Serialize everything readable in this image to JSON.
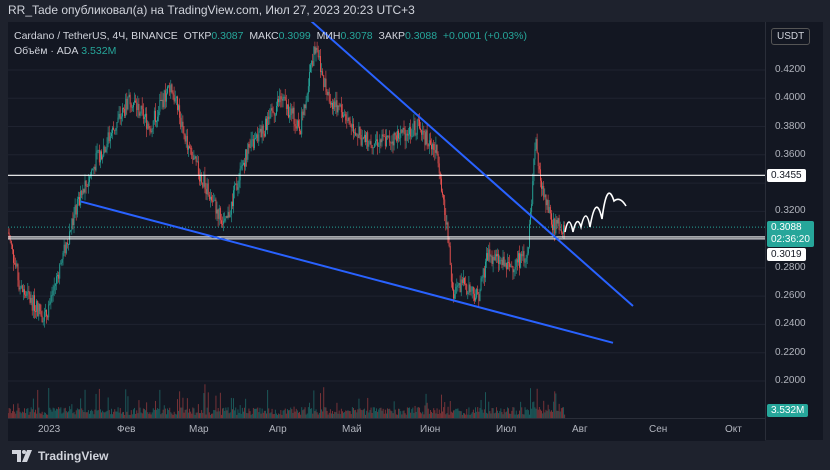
{
  "header": {
    "published": "RR_Tade опубликовал(а) на TradingView.com, Июл 27, 2023 20:23 UTC+3"
  },
  "legend": {
    "symbol": "Cardano / TetherUS, 4Ч, BINANCE",
    "open_label": "ОТКР",
    "open": "0.3087",
    "high_label": "МАКС",
    "high": "0.3099",
    "low_label": "МИН",
    "low": "0.3078",
    "close_label": "ЗАКР",
    "close": "0.3088",
    "change": "+0.0001 (+0.03%)",
    "volume_label": "Объём · ADA",
    "volume": "3.532M"
  },
  "currency_button": "USDT",
  "price_ticks": [
    "0.4200",
    "0.4000",
    "0.3800",
    "0.3600",
    "0.3200",
    "0.2800",
    "0.2600",
    "0.2400",
    "0.2200",
    "0.2000"
  ],
  "price_labels": {
    "level_high": "0.3455",
    "current": "0.3088",
    "countdown": "02:36:20",
    "level_low": "0.3019",
    "volume": "3.532M"
  },
  "time_ticks": [
    "2023",
    "Фев",
    "Мар",
    "Апр",
    "Май",
    "Июн",
    "Июл",
    "Авг",
    "Сен",
    "Окт"
  ],
  "footer": {
    "brand": "TradingView"
  },
  "colors": {
    "up": "#26a69a",
    "down": "#ef5350",
    "trendline": "#2962ff",
    "level": "#ffffff"
  },
  "chart_data": {
    "type": "candlestick",
    "interval": "4H",
    "ylim": [
      0.19,
      0.455
    ],
    "approx_close_path": [
      [
        "2022-12-16",
        0.305
      ],
      [
        "2022-12-21",
        0.265
      ],
      [
        "2022-12-31",
        0.245
      ],
      [
        "2023-01-12",
        0.32
      ],
      [
        "2023-01-20",
        0.355
      ],
      [
        "2023-02-03",
        0.4
      ],
      [
        "2023-02-11",
        0.38
      ],
      [
        "2023-02-19",
        0.41
      ],
      [
        "2023-02-27",
        0.36
      ],
      [
        "2023-03-07",
        0.33
      ],
      [
        "2023-03-13",
        0.31
      ],
      [
        "2023-03-21",
        0.36
      ],
      [
        "2023-03-29",
        0.38
      ],
      [
        "2023-04-04",
        0.4
      ],
      [
        "2023-04-12",
        0.38
      ],
      [
        "2023-04-18",
        0.44
      ],
      [
        "2023-04-23",
        0.4
      ],
      [
        "2023-04-29",
        0.39
      ],
      [
        "2023-05-07",
        0.37
      ],
      [
        "2023-05-17",
        0.37
      ],
      [
        "2023-05-29",
        0.38
      ],
      [
        "2023-06-06",
        0.36
      ],
      [
        "2023-06-10",
        0.3
      ],
      [
        "2023-06-12",
        0.26
      ],
      [
        "2023-06-16",
        0.27
      ],
      [
        "2023-06-22",
        0.26
      ],
      [
        "2023-06-26",
        0.29
      ],
      [
        "2023-07-04",
        0.28
      ],
      [
        "2023-07-12",
        0.29
      ],
      [
        "2023-07-15",
        0.37
      ],
      [
        "2023-07-18",
        0.33
      ],
      [
        "2023-07-22",
        0.31
      ],
      [
        "2023-07-27",
        0.3088
      ]
    ],
    "horizontal_levels": [
      0.3455,
      0.3019
    ],
    "trendlines": [
      [
        [
          "2023-04-16",
          0.455
        ],
        [
          "2023-08-23",
          0.253
        ]
      ],
      [
        [
          "2023-01-14",
          0.327
        ],
        [
          "2023-08-15",
          0.227
        ]
      ]
    ]
  }
}
